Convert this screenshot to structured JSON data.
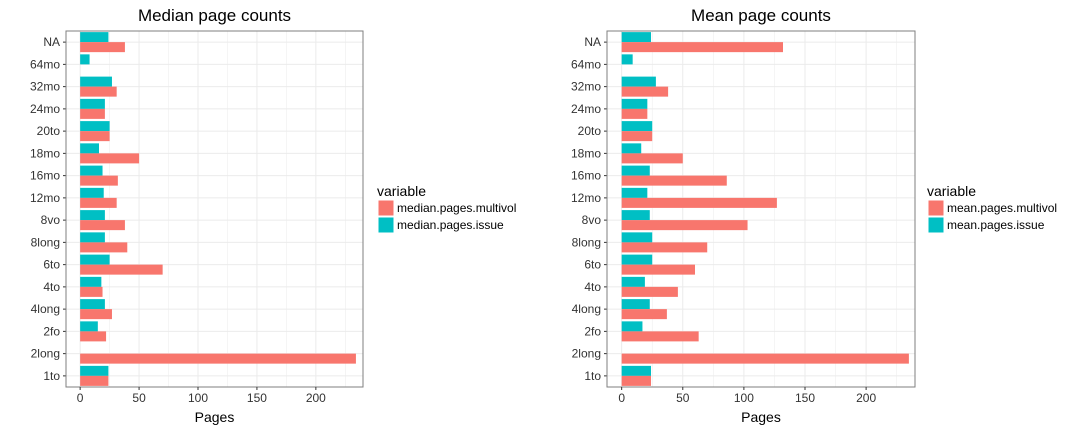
{
  "colors": {
    "multivol": "#F8766D",
    "issue": "#00BFC4",
    "grid": "#ebebeb",
    "border": "#7f7f7f"
  },
  "chart_data": [
    {
      "type": "bar",
      "orientation": "horizontal",
      "title": "Median page counts",
      "xlabel": "Pages",
      "ylabel": "",
      "xlim": [
        -12,
        240
      ],
      "xticks": [
        "0",
        "50",
        "100",
        "150",
        "200"
      ],
      "xtick_values": [
        0,
        50,
        100,
        150,
        200
      ],
      "categories": [
        "NA",
        "64mo",
        "32mo",
        "24mo",
        "20to",
        "18mo",
        "16mo",
        "12mo",
        "8vo",
        "8long",
        "6to",
        "4to",
        "4long",
        "2fo",
        "2long",
        "1to"
      ],
      "legend_title": "variable",
      "legend_position": "right",
      "series": [
        {
          "name": "median.pages.multivol",
          "color": "#F8766D",
          "values": [
            38,
            null,
            31,
            21,
            25,
            50,
            32,
            31,
            38,
            40,
            70,
            19,
            27,
            22,
            234,
            24
          ]
        },
        {
          "name": "median.pages.issue",
          "color": "#00BFC4",
          "values": [
            24,
            8,
            27,
            21,
            25,
            16,
            19,
            20,
            21,
            21,
            25,
            18,
            21,
            15,
            null,
            24
          ]
        }
      ]
    },
    {
      "type": "bar",
      "orientation": "horizontal",
      "title": "Mean page counts",
      "xlabel": "Pages",
      "ylabel": "",
      "xlim": [
        -12,
        240
      ],
      "xticks": [
        "0",
        "50",
        "100",
        "150",
        "200"
      ],
      "xtick_values": [
        0,
        50,
        100,
        150,
        200
      ],
      "categories": [
        "NA",
        "64mo",
        "32mo",
        "24mo",
        "20to",
        "18mo",
        "16mo",
        "12mo",
        "8vo",
        "8long",
        "6to",
        "4to",
        "4long",
        "2fo",
        "2long",
        "1to"
      ],
      "legend_title": "variable",
      "legend_position": "right",
      "series": [
        {
          "name": "mean.pages.multivol",
          "color": "#F8766D",
          "values": [
            132,
            null,
            38,
            21,
            25,
            50,
            86,
            127,
            103,
            70,
            60,
            46,
            37,
            63,
            235,
            24
          ]
        },
        {
          "name": "mean.pages.issue",
          "color": "#00BFC4",
          "values": [
            24,
            9,
            28,
            21,
            25,
            16,
            23,
            21,
            23,
            25,
            25,
            19,
            23,
            17,
            null,
            24
          ]
        }
      ]
    }
  ]
}
